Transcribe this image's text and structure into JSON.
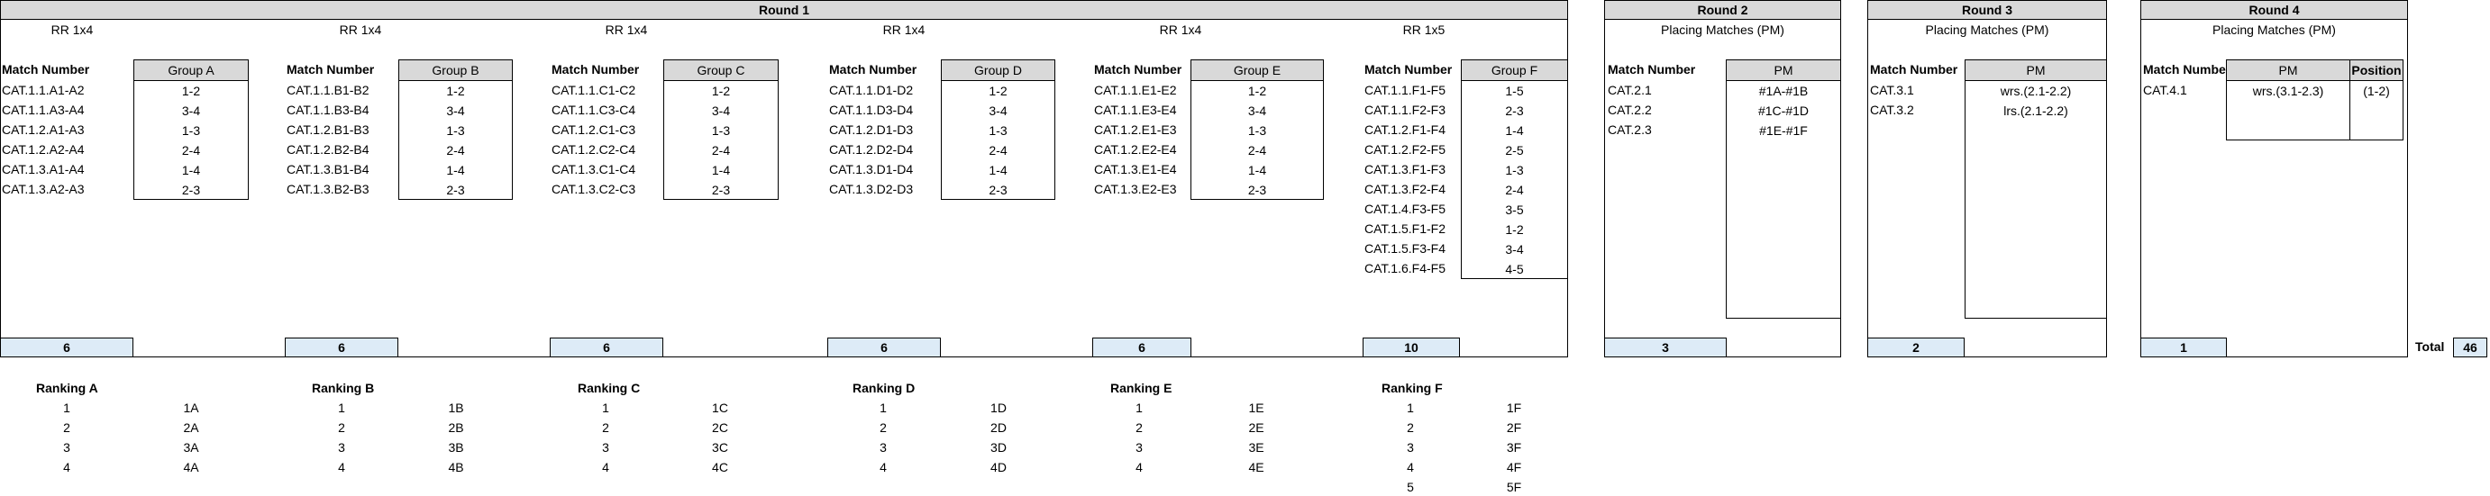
{
  "rounds": [
    {
      "title": "Round 1"
    },
    {
      "title": "Round 2",
      "subtitle": "Placing Matches (PM)"
    },
    {
      "title": "Round 3",
      "subtitle": "Placing Matches (PM)"
    },
    {
      "title": "Round 4",
      "subtitle": "Placing Matches (PM)"
    }
  ],
  "match_number_label": "Match Number",
  "groups": [
    {
      "rr": "RR 1x4",
      "name": "Group A",
      "matches": [
        "CAT.1.1.A1-A2",
        "CAT.1.1.A3-A4",
        "CAT.1.2.A1-A3",
        "CAT.1.2.A2-A4",
        "CAT.1.3.A1-A4",
        "CAT.1.3.A2-A3"
      ],
      "pairs": [
        "1-2",
        "3-4",
        "1-3",
        "2-4",
        "1-4",
        "2-3"
      ],
      "total": "6"
    },
    {
      "rr": "RR 1x4",
      "name": "Group B",
      "matches": [
        "CAT.1.1.B1-B2",
        "CAT.1.1.B3-B4",
        "CAT.1.2.B1-B3",
        "CAT.1.2.B2-B4",
        "CAT.1.3.B1-B4",
        "CAT.1.3.B2-B3"
      ],
      "pairs": [
        "1-2",
        "3-4",
        "1-3",
        "2-4",
        "1-4",
        "2-3"
      ],
      "total": "6"
    },
    {
      "rr": "RR 1x4",
      "name": "Group C",
      "matches": [
        "CAT.1.1.C1-C2",
        "CAT.1.1.C3-C4",
        "CAT.1.2.C1-C3",
        "CAT.1.2.C2-C4",
        "CAT.1.3.C1-C4",
        "CAT.1.3.C2-C3"
      ],
      "pairs": [
        "1-2",
        "3-4",
        "1-3",
        "2-4",
        "1-4",
        "2-3"
      ],
      "total": "6"
    },
    {
      "rr": "RR 1x4",
      "name": "Group D",
      "matches": [
        "CAT.1.1.D1-D2",
        "CAT.1.1.D3-D4",
        "CAT.1.2.D1-D3",
        "CAT.1.2.D2-D4",
        "CAT.1.3.D1-D4",
        "CAT.1.3.D2-D3"
      ],
      "pairs": [
        "1-2",
        "3-4",
        "1-3",
        "2-4",
        "1-4",
        "2-3"
      ],
      "total": "6"
    },
    {
      "rr": "RR 1x4",
      "name": "Group E",
      "matches": [
        "CAT.1.1.E1-E2",
        "CAT.1.1.E3-E4",
        "CAT.1.2.E1-E3",
        "CAT.1.2.E2-E4",
        "CAT.1.3.E1-E4",
        "CAT.1.3.E2-E3"
      ],
      "pairs": [
        "1-2",
        "3-4",
        "1-3",
        "2-4",
        "1-4",
        "2-3"
      ],
      "total": "6"
    },
    {
      "rr": "RR 1x5",
      "name": "Group F",
      "matches": [
        "CAT.1.1.F1-F5",
        "CAT.1.1.F2-F3",
        "CAT.1.2.F1-F4",
        "CAT.1.2.F2-F5",
        "CAT.1.3.F1-F3",
        "CAT.1.3.F2-F4",
        "CAT.1.4.F3-F5",
        "CAT.1.5.F1-F2",
        "CAT.1.5.F3-F4",
        "CAT.1.6.F4-F5"
      ],
      "pairs": [
        "1-5",
        "2-3",
        "1-4",
        "2-5",
        "1-3",
        "2-4",
        "3-5",
        "1-2",
        "3-4",
        "4-5"
      ],
      "total": "10"
    }
  ],
  "round2": {
    "head": "PM",
    "matches": [
      "CAT.2.1",
      "CAT.2.2",
      "CAT.2.3"
    ],
    "pairs": [
      "#1A-#1B",
      "#1C-#1D",
      "#1E-#1F"
    ],
    "total": "3"
  },
  "round3": {
    "head": "PM",
    "matches": [
      "CAT.3.1",
      "CAT.3.2"
    ],
    "pairs": [
      "wrs.(2.1-2.2)",
      "lrs.(2.1-2.2)"
    ],
    "total": "2"
  },
  "round4": {
    "head": "PM",
    "position_head": "Position",
    "matches": [
      "CAT.4.1"
    ],
    "pairs": [
      "wrs.(3.1-2.3)"
    ],
    "positions": [
      "(1-2)"
    ],
    "total": "1"
  },
  "grand_total": {
    "label": "Total",
    "value": "46"
  },
  "rankings": [
    {
      "title": "Ranking A",
      "numbers": [
        "1",
        "2",
        "3",
        "4"
      ],
      "values": [
        "1A",
        "2A",
        "3A",
        "4A"
      ]
    },
    {
      "title": "Ranking B",
      "numbers": [
        "1",
        "2",
        "3",
        "4"
      ],
      "values": [
        "1B",
        "2B",
        "3B",
        "4B"
      ]
    },
    {
      "title": "Ranking C",
      "numbers": [
        "1",
        "2",
        "3",
        "4"
      ],
      "values": [
        "1C",
        "2C",
        "3C",
        "4C"
      ]
    },
    {
      "title": "Ranking D",
      "numbers": [
        "1",
        "2",
        "3",
        "4"
      ],
      "values": [
        "1D",
        "2D",
        "3D",
        "4D"
      ]
    },
    {
      "title": "Ranking E",
      "numbers": [
        "1",
        "2",
        "3",
        "4"
      ],
      "values": [
        "1E",
        "2E",
        "3E",
        "4E"
      ]
    },
    {
      "title": "Ranking F",
      "numbers": [
        "1",
        "2",
        "3",
        "4",
        "5"
      ],
      "values": [
        "1F",
        "2F",
        "3F",
        "4F",
        "5F"
      ]
    }
  ]
}
